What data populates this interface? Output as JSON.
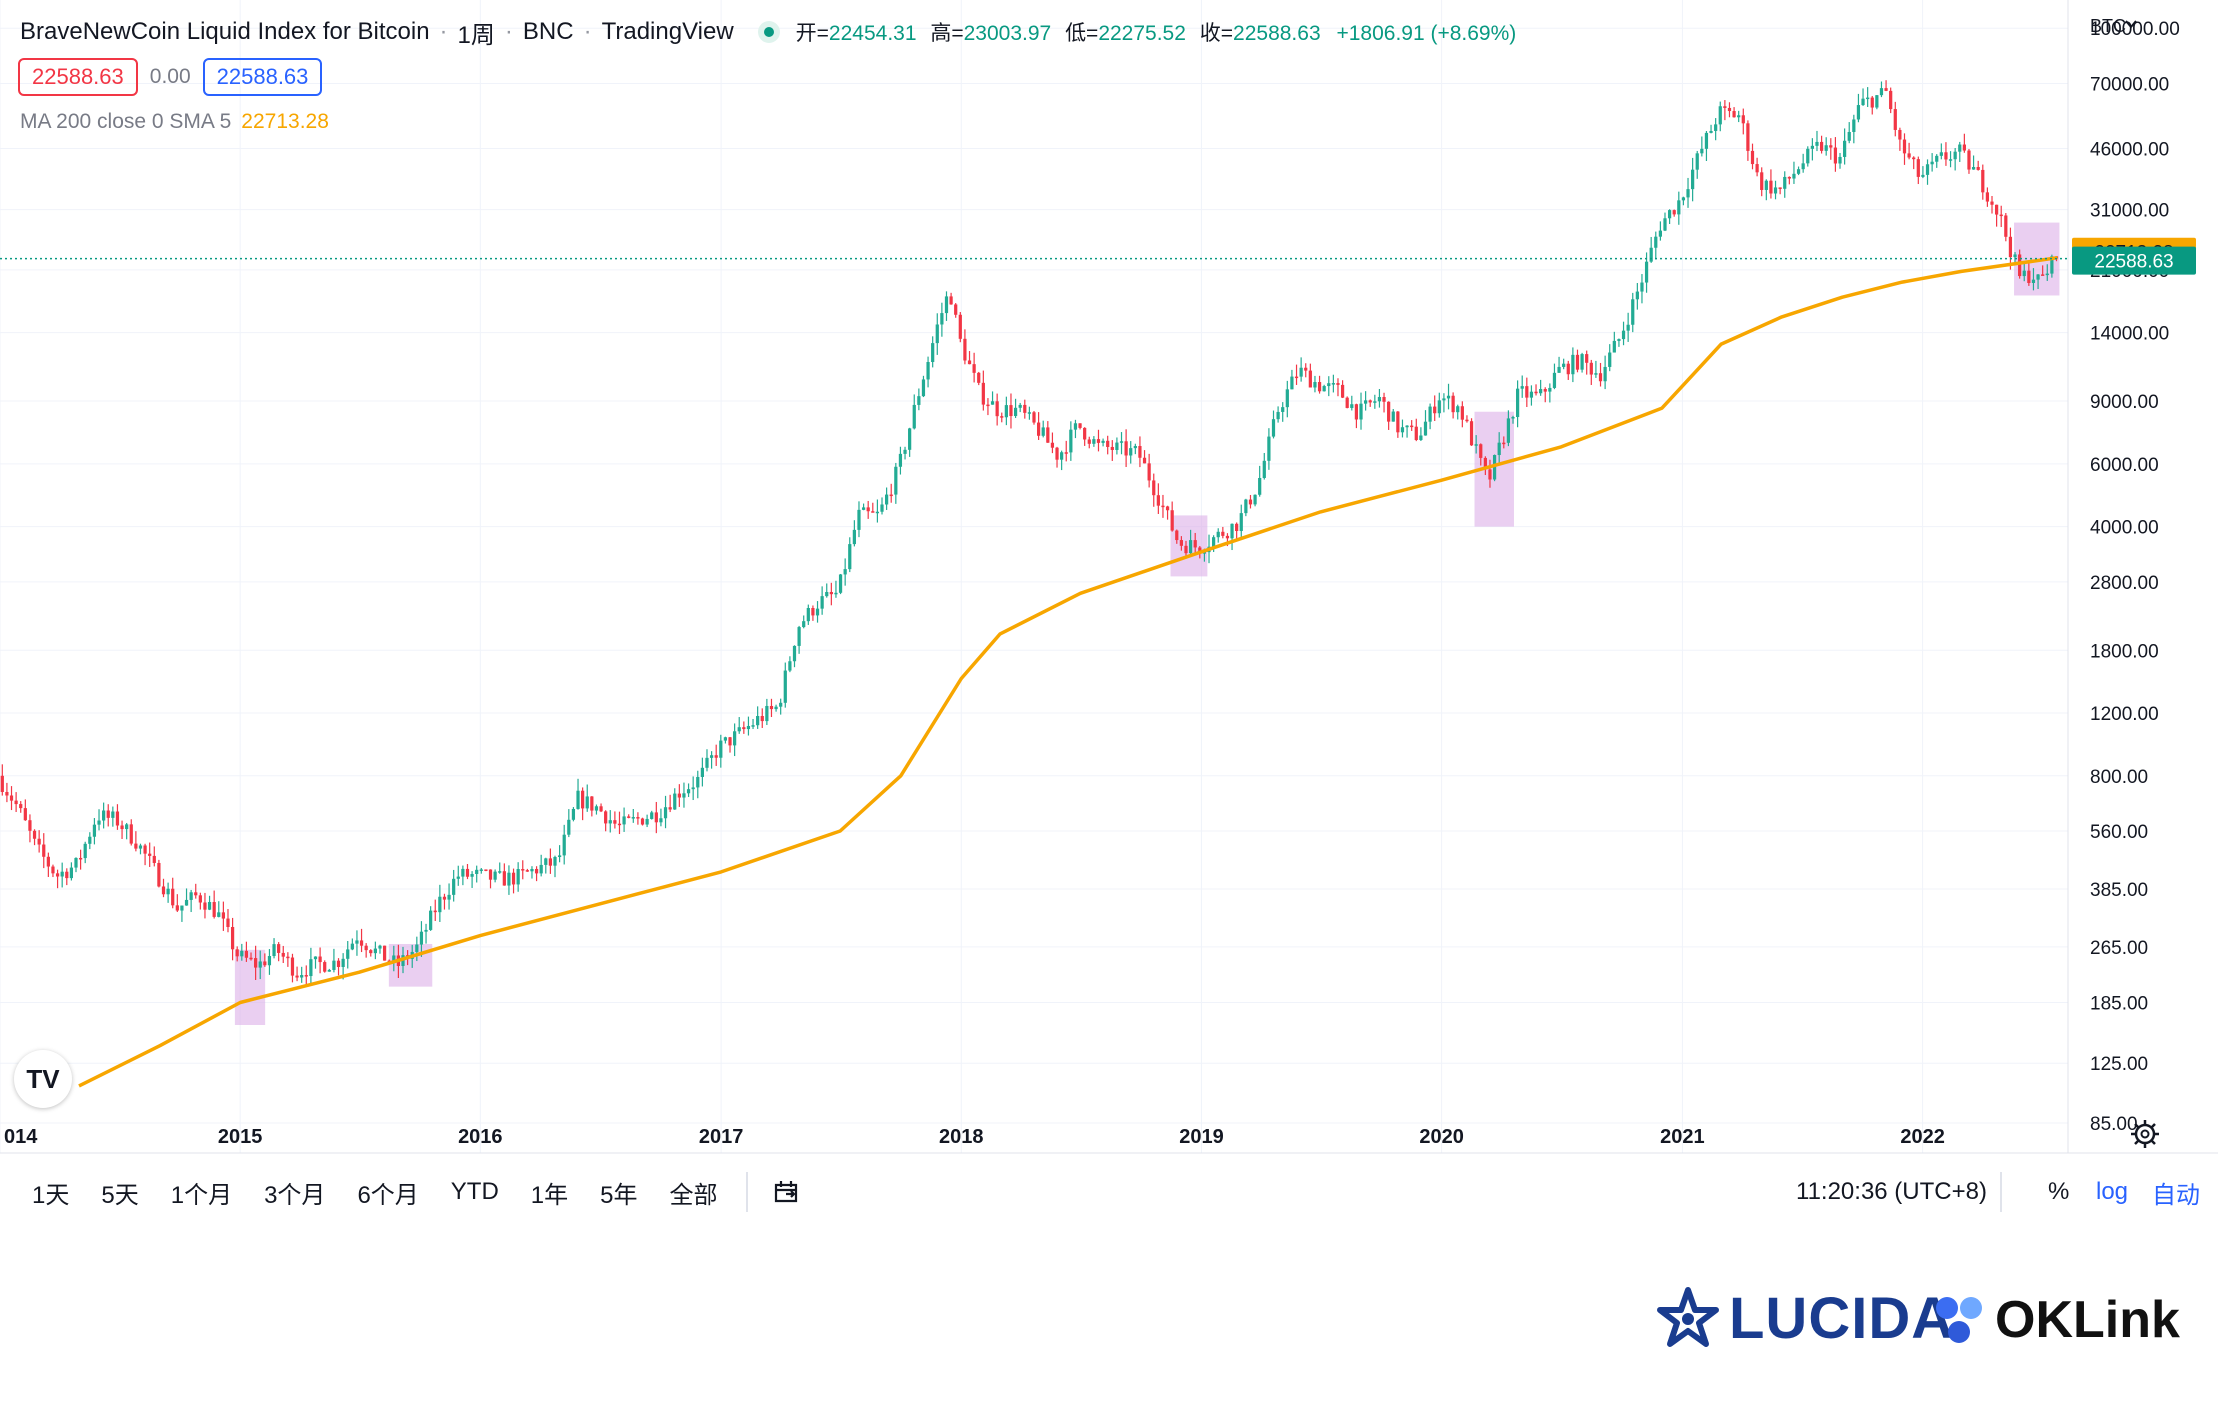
{
  "header": {
    "title": "BraveNewCoin Liquid Index for Bitcoin",
    "interval": "1周",
    "exchange": "BNC",
    "source": "TradingView",
    "ohlc": {
      "open_label": "开=",
      "open": "22454.31",
      "high_label": "高=",
      "high": "23003.97",
      "low_label": "低=",
      "low": "22275.52",
      "close_label": "收=",
      "close": "22588.63",
      "change": "+1806.91 (+8.69%)"
    },
    "price_bid": "22588.63",
    "spread": "0.00",
    "price_ask": "22588.63"
  },
  "indicator": {
    "label": "MA 200 close 0 SMA 5",
    "value": "22713.28"
  },
  "currency": "BTC",
  "bottom_toolbar": {
    "timeframes": [
      "1天",
      "5天",
      "1个月",
      "3个月",
      "6个月",
      "YTD",
      "1年",
      "5年",
      "全部"
    ],
    "time": "11:20:36 (UTC+8)",
    "percent": "%",
    "log": "log",
    "auto": "自动"
  },
  "logos": {
    "lucida": "LUCIDA",
    "oklink": "OKLink"
  },
  "colors": {
    "up": "#22ab94",
    "down": "#f23645",
    "ma": "#f7a600",
    "highlight": "#d9a8e6",
    "current_price_badge": "#089981",
    "ma_badge": "#f7a600"
  },
  "chart_data": {
    "type": "candlestick",
    "title": "BraveNewCoin Liquid Index for Bitcoin",
    "interval": "1周",
    "scale": "log",
    "ylim": [
      70,
      120000
    ],
    "xlim": [
      "2014-01-01",
      "2022-08-10"
    ],
    "y_ticks": [
      100000,
      70000,
      46000,
      31000,
      21000,
      14000,
      9000,
      6000,
      4000,
      2800,
      1800,
      1200,
      800,
      560,
      385,
      265,
      185,
      125,
      85
    ],
    "y_tick_labels": [
      "100000.00",
      "70000.00",
      "46000.00",
      "31000.00",
      "21000.00",
      "14000.00",
      "9000.00",
      "6000.00",
      "4000.00",
      "2800.00",
      "1800.00",
      "1200.00",
      "800.00",
      "560.00",
      "385.00",
      "265.00",
      "185.00",
      "125.00",
      "85.00"
    ],
    "x_ticks": [
      "2014-01-01",
      "2015-01-01",
      "2016-01-01",
      "2017-01-01",
      "2018-01-01",
      "2019-01-01",
      "2020-01-01",
      "2021-01-01",
      "2022-01-01"
    ],
    "x_tick_labels": [
      "014",
      "2015",
      "2016",
      "2017",
      "2018",
      "2019",
      "2020",
      "2021",
      "2022"
    ],
    "price_path": [
      [
        "2014-01-01",
        800
      ],
      [
        "2014-02-01",
        650
      ],
      [
        "2014-03-01",
        500
      ],
      [
        "2014-04-01",
        420
      ],
      [
        "2014-05-01",
        450
      ],
      [
        "2014-06-01",
        620
      ],
      [
        "2014-07-01",
        600
      ],
      [
        "2014-08-01",
        520
      ],
      [
        "2014-09-01",
        420
      ],
      [
        "2014-10-01",
        340
      ],
      [
        "2014-11-01",
        370
      ],
      [
        "2014-12-01",
        330
      ],
      [
        "2015-01-01",
        250
      ],
      [
        "2015-02-01",
        235
      ],
      [
        "2015-03-01",
        260
      ],
      [
        "2015-04-01",
        225
      ],
      [
        "2015-05-01",
        237
      ],
      [
        "2015-06-01",
        240
      ],
      [
        "2015-07-01",
        285
      ],
      [
        "2015-08-01",
        255
      ],
      [
        "2015-09-01",
        235
      ],
      [
        "2015-10-01",
        265
      ],
      [
        "2015-11-01",
        350
      ],
      [
        "2015-12-01",
        420
      ],
      [
        "2016-01-01",
        420
      ],
      [
        "2016-02-01",
        410
      ],
      [
        "2016-03-01",
        415
      ],
      [
        "2016-04-01",
        440
      ],
      [
        "2016-05-01",
        460
      ],
      [
        "2016-06-01",
        690
      ],
      [
        "2016-07-01",
        650
      ],
      [
        "2016-08-01",
        575
      ],
      [
        "2016-09-01",
        605
      ],
      [
        "2016-10-01",
        630
      ],
      [
        "2016-11-01",
        720
      ],
      [
        "2016-12-01",
        780
      ],
      [
        "2017-01-01",
        960
      ],
      [
        "2017-02-01",
        1050
      ],
      [
        "2017-03-01",
        1150
      ],
      [
        "2017-04-01",
        1250
      ],
      [
        "2017-05-01",
        2100
      ],
      [
        "2017-06-01",
        2450
      ],
      [
        "2017-07-01",
        2600
      ],
      [
        "2017-08-01",
        4300
      ],
      [
        "2017-09-01",
        4300
      ],
      [
        "2017-10-01",
        5800
      ],
      [
        "2017-11-01",
        9500
      ],
      [
        "2017-12-01",
        15000
      ],
      [
        "2017-12-18",
        18500
      ],
      [
        "2018-01-01",
        13500
      ],
      [
        "2018-02-01",
        9500
      ],
      [
        "2018-03-01",
        8500
      ],
      [
        "2018-04-01",
        8500
      ],
      [
        "2018-05-01",
        7500
      ],
      [
        "2018-06-01",
        6300
      ],
      [
        "2018-07-01",
        7700
      ],
      [
        "2018-08-01",
        6700
      ],
      [
        "2018-09-01",
        6600
      ],
      [
        "2018-10-01",
        6400
      ],
      [
        "2018-11-01",
        4800
      ],
      [
        "2018-12-01",
        3600
      ],
      [
        "2019-01-01",
        3500
      ],
      [
        "2019-02-01",
        3800
      ],
      [
        "2019-03-01",
        4100
      ],
      [
        "2019-04-01",
        5300
      ],
      [
        "2019-05-01",
        8500
      ],
      [
        "2019-06-01",
        11000
      ],
      [
        "2019-07-01",
        10000
      ],
      [
        "2019-08-01",
        9600
      ],
      [
        "2019-09-01",
        8300
      ],
      [
        "2019-10-01",
        9200
      ],
      [
        "2019-11-01",
        7500
      ],
      [
        "2019-12-01",
        7200
      ],
      [
        "2020-01-01",
        9300
      ],
      [
        "2020-02-01",
        8600
      ],
      [
        "2020-03-15",
        5300
      ],
      [
        "2020-04-01",
        6600
      ],
      [
        "2020-05-01",
        9500
      ],
      [
        "2020-06-01",
        9200
      ],
      [
        "2020-07-01",
        11000
      ],
      [
        "2020-08-01",
        11700
      ],
      [
        "2020-09-01",
        10700
      ],
      [
        "2020-10-01",
        13500
      ],
      [
        "2020-11-01",
        19000
      ],
      [
        "2020-12-01",
        28000
      ],
      [
        "2021-01-01",
        33000
      ],
      [
        "2021-02-01",
        45000
      ],
      [
        "2021-03-01",
        58000
      ],
      [
        "2021-04-01",
        57000
      ],
      [
        "2021-05-01",
        37000
      ],
      [
        "2021-06-01",
        35000
      ],
      [
        "2021-07-01",
        41000
      ],
      [
        "2021-08-01",
        47000
      ],
      [
        "2021-09-01",
        43000
      ],
      [
        "2021-10-01",
        61000
      ],
      [
        "2021-11-10",
        66000
      ],
      [
        "2021-12-01",
        47000
      ],
      [
        "2022-01-01",
        38000
      ],
      [
        "2022-02-01",
        43000
      ],
      [
        "2022-03-01",
        45000
      ],
      [
        "2022-04-01",
        38000
      ],
      [
        "2022-05-01",
        30000
      ],
      [
        "2022-06-01",
        20000
      ],
      [
        "2022-06-20",
        20500
      ],
      [
        "2022-07-01",
        19300
      ],
      [
        "2022-07-25",
        22588.63
      ]
    ],
    "series": [
      {
        "name": "MA 200 close 0 SMA 5",
        "x": [
          "2014-05-01",
          "2014-09-01",
          "2015-01-01",
          "2015-07-01",
          "2016-01-01",
          "2016-07-01",
          "2017-01-01",
          "2017-07-01",
          "2017-10-01",
          "2018-01-01",
          "2018-03-01",
          "2018-07-01",
          "2019-01-01",
          "2019-07-01",
          "2020-01-01",
          "2020-07-01",
          "2020-12-01",
          "2021-03-01",
          "2021-06-01",
          "2021-09-01",
          "2021-12-01",
          "2022-03-01",
          "2022-07-25"
        ],
        "values": [
          108,
          140,
          185,
          225,
          285,
          350,
          430,
          560,
          800,
          1500,
          2000,
          2600,
          3400,
          4400,
          5400,
          6700,
          8600,
          13000,
          15500,
          17600,
          19400,
          20800,
          22713.28
        ]
      }
    ],
    "current_price": 22588.63,
    "ma_value": 22713.28,
    "highlight_boxes": [
      {
        "x": [
          "2014-12-24",
          "2015-02-08"
        ],
        "y": [
          160,
          260
        ]
      },
      {
        "x": [
          "2015-08-15",
          "2015-10-20"
        ],
        "y": [
          205,
          270
        ]
      },
      {
        "x": [
          "2018-11-15",
          "2019-01-10"
        ],
        "y": [
          2900,
          4300
        ]
      },
      {
        "x": [
          "2020-02-20",
          "2020-04-20"
        ],
        "y": [
          4000,
          8400
        ]
      },
      {
        "x": [
          "2022-05-20",
          "2022-07-28"
        ],
        "y": [
          17800,
          28500
        ]
      }
    ]
  }
}
